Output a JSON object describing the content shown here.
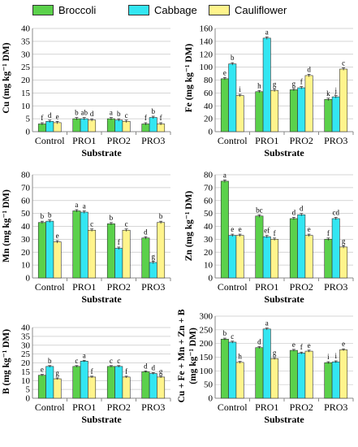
{
  "legend": {
    "items": [
      {
        "label": "Broccoli",
        "color": "#5bd14b"
      },
      {
        "label": "Cabbage",
        "color": "#33e6f2"
      },
      {
        "label": "Cauliflower",
        "color": "#fff48c"
      }
    ]
  },
  "chart_data": [
    {
      "type": "bar",
      "ylabel": "Cu (mg kg⁻¹ DM)",
      "xlabel": "Substrate",
      "ylim": [
        0,
        40
      ],
      "yticks": [
        0,
        5,
        10,
        15,
        20,
        25,
        30,
        35,
        40
      ],
      "categories": [
        "Control",
        "PRO1",
        "PRO2",
        "PRO3"
      ],
      "series": [
        {
          "name": "Broccoli",
          "values": [
            3.0,
            5.0,
            5.0,
            3.0
          ]
        },
        {
          "name": "Cabbage",
          "values": [
            4.0,
            5.0,
            4.5,
            5.5
          ]
        },
        {
          "name": "Cauliflower",
          "values": [
            3.5,
            4.5,
            4.0,
            3.0
          ]
        }
      ],
      "letters": [
        [
          "f",
          "d",
          "e"
        ],
        [
          "b",
          "ab",
          "d"
        ],
        [
          "a",
          "b",
          "c"
        ],
        [
          "f",
          "b",
          "f"
        ]
      ]
    },
    {
      "type": "bar",
      "ylabel": "Fe (mg kg⁻¹ DM)",
      "xlabel": "Substrate",
      "ylim": [
        0,
        160
      ],
      "yticks": [
        0,
        20,
        40,
        60,
        80,
        100,
        120,
        140,
        160
      ],
      "categories": [
        "Control",
        "PRO1",
        "PRO2",
        "PRO3"
      ],
      "series": [
        {
          "name": "Broccoli",
          "values": [
            82,
            62,
            65,
            50
          ]
        },
        {
          "name": "Cabbage",
          "values": [
            105,
            145,
            68,
            54
          ]
        },
        {
          "name": "Cauliflower",
          "values": [
            56,
            64,
            87,
            97
          ]
        }
      ],
      "letters": [
        [
          "e",
          "b",
          "i"
        ],
        [
          "h",
          "a",
          "g"
        ],
        [
          "g",
          "f",
          "d"
        ],
        [
          "k",
          "j",
          "c"
        ]
      ]
    },
    {
      "type": "bar",
      "ylabel": "Mn (mg kg⁻¹ DM)",
      "xlabel": "Substrate",
      "ylim": [
        0,
        80
      ],
      "yticks": [
        0,
        10,
        20,
        30,
        40,
        50,
        60,
        70,
        80
      ],
      "categories": [
        "Control",
        "PRO1",
        "PRO2",
        "PRO3"
      ],
      "series": [
        {
          "name": "Broccoli",
          "values": [
            43,
            52,
            42,
            31
          ]
        },
        {
          "name": "Cabbage",
          "values": [
            44,
            51,
            23,
            12
          ]
        },
        {
          "name": "Cauliflower",
          "values": [
            28,
            37,
            37,
            43
          ]
        }
      ],
      "letters": [
        [
          "b",
          "b",
          "e"
        ],
        [
          "a",
          "a",
          "c"
        ],
        [
          "b",
          "f",
          "c"
        ],
        [
          "d",
          "g",
          "b"
        ]
      ]
    },
    {
      "type": "bar",
      "ylabel": "Zn (mg kg⁻¹ DM)",
      "xlabel": "Substrate",
      "ylim": [
        0,
        80
      ],
      "yticks": [
        0,
        10,
        20,
        30,
        40,
        50,
        60,
        70,
        80
      ],
      "categories": [
        "Control",
        "PRO1",
        "PRO2",
        "PRO3"
      ],
      "series": [
        {
          "name": "Broccoli",
          "values": [
            75,
            48,
            46,
            30
          ]
        },
        {
          "name": "Cabbage",
          "values": [
            33,
            32,
            49,
            46
          ]
        },
        {
          "name": "Cauliflower",
          "values": [
            33,
            30,
            33,
            24
          ]
        }
      ],
      "letters": [
        [
          "a",
          "e",
          "e"
        ],
        [
          "bc",
          "ef",
          "f"
        ],
        [
          "d",
          "d",
          "e"
        ],
        [
          "f",
          "cd",
          "g"
        ]
      ]
    },
    {
      "type": "bar",
      "ylabel": "B (mg kg⁻¹ DM)",
      "xlabel": "Substrate",
      "ylim": [
        0,
        40
      ],
      "yticks": [
        0,
        5,
        10,
        15,
        20,
        25,
        30,
        35,
        40
      ],
      "categories": [
        "Control",
        "PRO1",
        "PRO2",
        "PRO3"
      ],
      "series": [
        {
          "name": "Broccoli",
          "values": [
            13,
            18,
            18,
            15
          ]
        },
        {
          "name": "Cabbage",
          "values": [
            18,
            21,
            18,
            14
          ]
        },
        {
          "name": "Cauliflower",
          "values": [
            11,
            12,
            12,
            12
          ]
        }
      ],
      "letters": [
        [
          "e",
          "b",
          "g"
        ],
        [
          "c",
          "a",
          "f"
        ],
        [
          "c",
          "c",
          "f"
        ],
        [
          "d",
          "d",
          "g"
        ]
      ]
    },
    {
      "type": "bar",
      "ylabel": "Cu + Fe + Mn + Zn + B (mg kg⁻¹ DM)",
      "xlabel": "Substrate",
      "ylim": [
        0,
        300
      ],
      "yticks": [
        0,
        50,
        100,
        150,
        200,
        250,
        300
      ],
      "categories": [
        "Control",
        "PRO1",
        "PRO2",
        "PRO3"
      ],
      "series": [
        {
          "name": "Broccoli",
          "values": [
            216,
            185,
            175,
            130
          ]
        },
        {
          "name": "Cabbage",
          "values": [
            205,
            253,
            165,
            133
          ]
        },
        {
          "name": "Cauliflower",
          "values": [
            131,
            145,
            172,
            177
          ]
        }
      ],
      "letters": [
        [
          "b",
          "c",
          "h"
        ],
        [
          "d",
          "a",
          "g"
        ],
        [
          "e",
          "f",
          "e"
        ],
        [
          "i",
          "i",
          "e"
        ]
      ]
    }
  ]
}
